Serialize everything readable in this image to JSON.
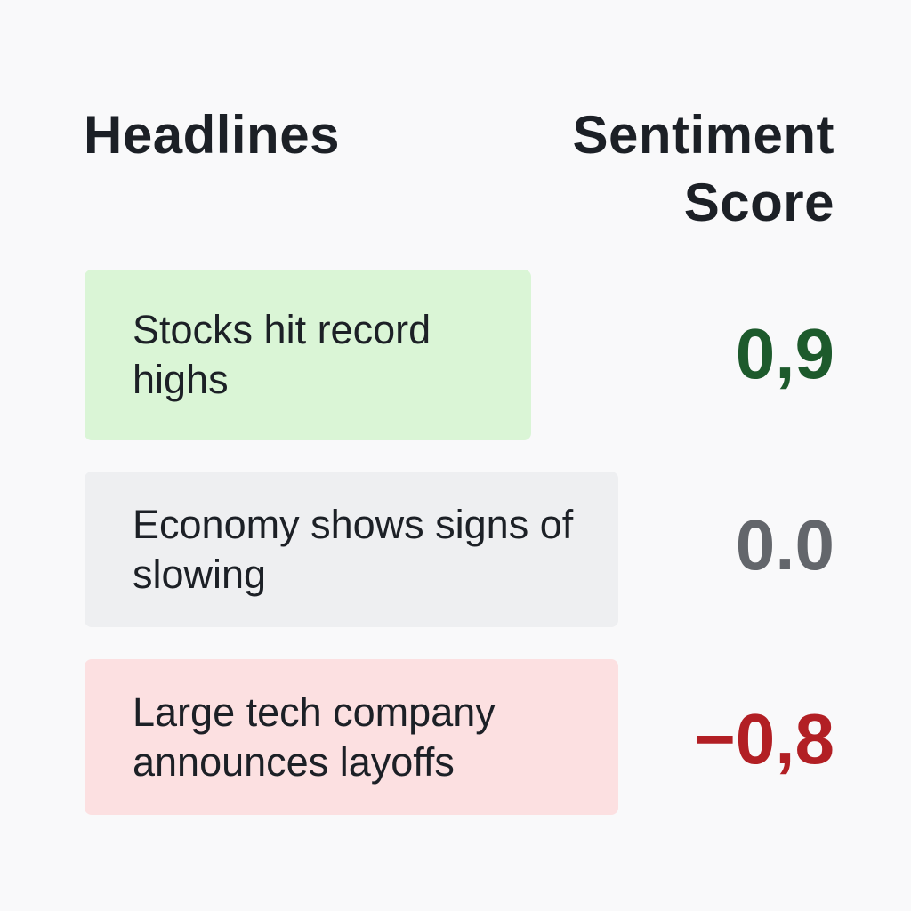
{
  "header": {
    "headlines_label": "Headlines",
    "sentiment_label": "Sentiment Score"
  },
  "rows": [
    {
      "headline": "Stocks hit record highs",
      "score": "0,9",
      "sentiment": "positive",
      "card_color": "#daf5d6",
      "score_color": "#1d5a2c"
    },
    {
      "headline": "Economy shows signs of slowing",
      "score": "0.0",
      "sentiment": "neutral",
      "card_color": "#eeeff1",
      "score_color": "#63666b"
    },
    {
      "headline": "Large tech company announces layoffs",
      "score": "−0,8",
      "sentiment": "negative",
      "card_color": "#fce0e1",
      "score_color": "#b21f24"
    }
  ]
}
